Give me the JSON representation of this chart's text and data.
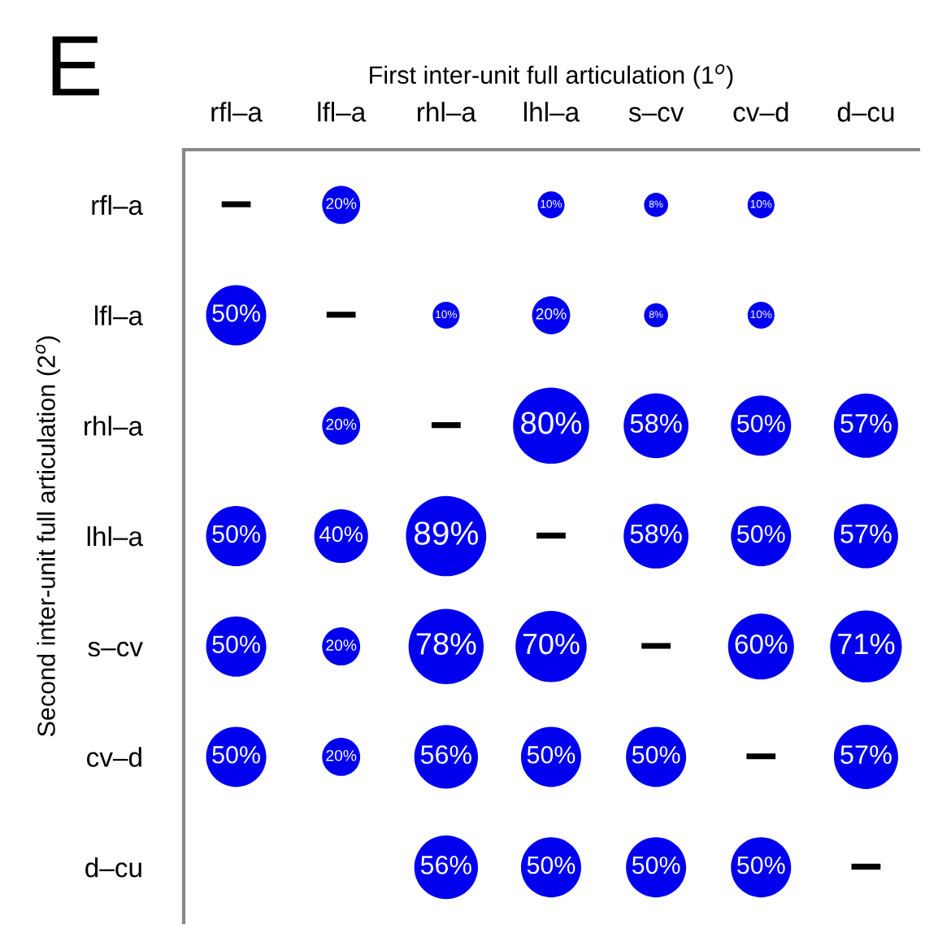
{
  "chart_data": {
    "type": "heatmap",
    "title": "E",
    "xlabel": "First inter-unit full articulation (1$^{o}$)",
    "ylabel": "Second inter-unit full articulation (2$^{o}$)",
    "categories": [
      "rfl–a",
      "lfl–a",
      "rhl–a",
      "lhl–a",
      "s–cv",
      "cv–d",
      "d–cu"
    ],
    "y_categories": [
      "rfl–a",
      "lfl–a",
      "rhl–a",
      "lhl–a",
      "s–cv",
      "cv–d",
      "d–cu"
    ],
    "color": "#0000ee",
    "cells": [
      [
        null,
        20,
        null,
        10,
        8,
        10,
        null
      ],
      [
        50,
        null,
        10,
        20,
        8,
        10,
        null
      ],
      [
        null,
        20,
        null,
        80,
        58,
        50,
        57
      ],
      [
        50,
        40,
        89,
        null,
        58,
        50,
        57
      ],
      [
        50,
        20,
        78,
        70,
        null,
        60,
        71
      ],
      [
        50,
        20,
        56,
        50,
        50,
        null,
        57
      ],
      [
        null,
        null,
        56,
        50,
        50,
        50,
        null
      ]
    ],
    "cell_labels": [
      [
        "–",
        "20%",
        null,
        "10%",
        "8%",
        "10%",
        null
      ],
      [
        "50%",
        "–",
        "10%",
        "20%",
        "8%",
        "10%",
        null
      ],
      [
        null,
        "20%",
        "–",
        "80%",
        "58%",
        "50%",
        "57%"
      ],
      [
        "50%",
        "40%",
        "89%",
        "–",
        "58%",
        "50%",
        "57%"
      ],
      [
        "50%",
        "20%",
        "78%",
        "70%",
        "–",
        "60%",
        "71%"
      ],
      [
        "50%",
        "20%",
        "56%",
        "50%",
        "50%",
        "–",
        "57%"
      ],
      [
        null,
        null,
        "56%",
        "50%",
        "50%",
        "50%",
        "–"
      ]
    ]
  }
}
